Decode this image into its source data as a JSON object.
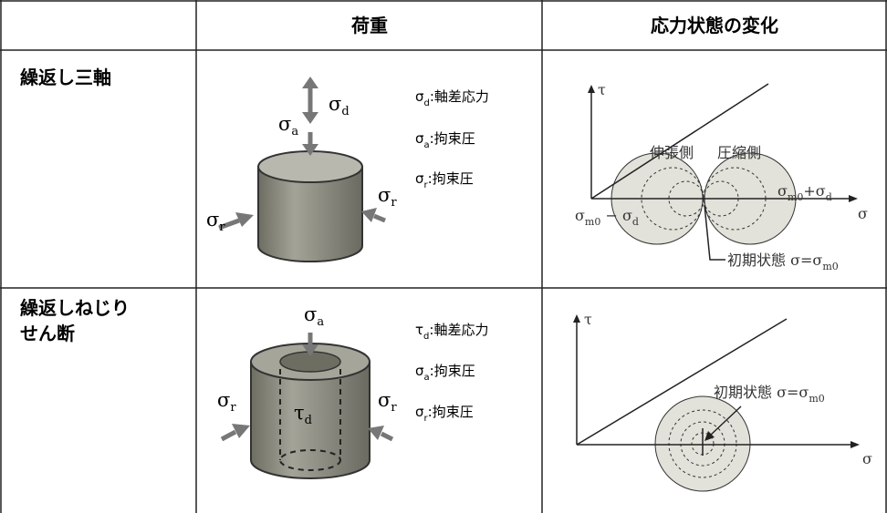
{
  "table": {
    "header": [
      "荷重",
      "応力状態の変化"
    ],
    "rows": [
      {
        "label": [
          "繰返し三軸"
        ],
        "load_labels": [
          [
            {
              "text": "σ"
            },
            {
              "sub": "d"
            }
          ],
          [
            {
              "text": "σ"
            },
            {
              "sub": "a"
            }
          ],
          [
            {
              "text": "σ"
            },
            {
              "sub": "r"
            }
          ],
          [
            {
              "text": "σ"
            },
            {
              "sub": "r"
            }
          ]
        ],
        "legend": [
          [
            {
              "text": "σ"
            },
            {
              "sub": "d"
            },
            {
              "text": ":軸差応力"
            }
          ],
          [
            {
              "text": "σ"
            },
            {
              "sub": "a"
            },
            {
              "text": ":拘束圧"
            }
          ],
          [
            {
              "text": "σ"
            },
            {
              "sub": "r"
            },
            {
              "text": ":拘束圧"
            }
          ]
        ],
        "plot_labels": [
          [
            {
              "text": "τ"
            }
          ],
          [
            {
              "text": "σ"
            }
          ],
          [
            {
              "text": "伸張側"
            }
          ],
          [
            {
              "text": "圧縮側"
            }
          ],
          [
            {
              "text": "σ"
            },
            {
              "sub": "m0"
            },
            {
              "text": "+σ"
            },
            {
              "sub": "d"
            }
          ],
          [
            {
              "text": "σ"
            },
            {
              "sub": "m0"
            },
            {
              "text": " − σ"
            },
            {
              "sub": "d"
            }
          ],
          [
            {
              "text": "初期状態 σ=σ"
            },
            {
              "sub": "m0"
            }
          ]
        ]
      },
      {
        "label": [
          "繰返しねじり",
          "せん断"
        ],
        "load_labels": [
          [
            {
              "text": "σ"
            },
            {
              "sub": "a"
            }
          ],
          [
            {
              "text": "σ"
            },
            {
              "sub": "r"
            }
          ],
          [
            {
              "text": "σ"
            },
            {
              "sub": "r"
            }
          ],
          [
            {
              "text": "τ"
            },
            {
              "sub": "d"
            }
          ]
        ],
        "legend": [
          [
            {
              "text": "τ"
            },
            {
              "sub": "d"
            },
            {
              "text": ":軸差応力"
            }
          ],
          [
            {
              "text": "σ"
            },
            {
              "sub": "a"
            },
            {
              "text": ":拘束圧"
            }
          ],
          [
            {
              "text": "σ"
            },
            {
              "sub": "r"
            },
            {
              "text": ":拘束圧"
            }
          ]
        ],
        "plot_labels": [
          [
            {
              "text": "τ"
            }
          ],
          [
            {
              "text": "σ"
            }
          ],
          [
            {
              "text": "初期状態 σ=σ"
            },
            {
              "sub": "m0"
            }
          ]
        ]
      }
    ]
  }
}
